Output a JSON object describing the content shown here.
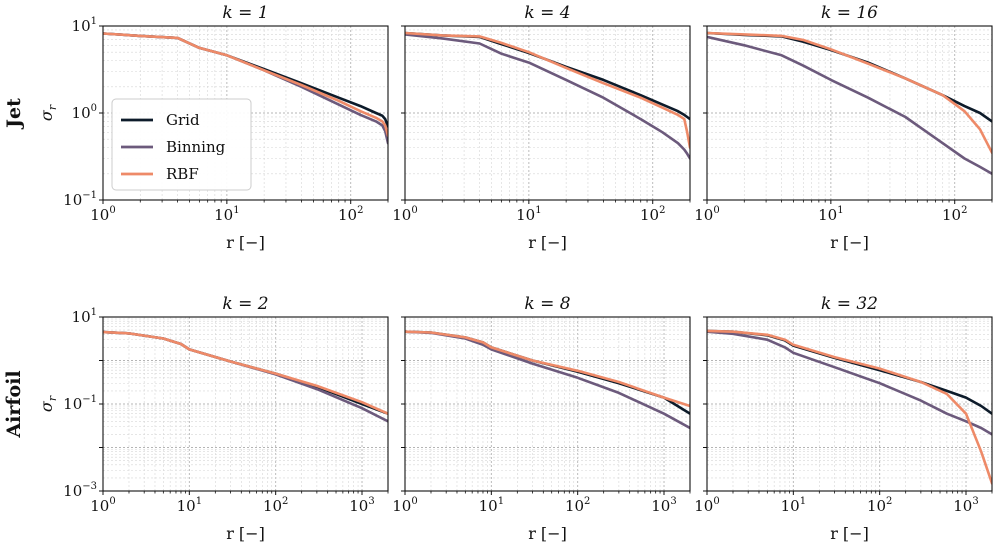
{
  "colors": {
    "Grid": "#0d1b2a",
    "Binning": "#6c5a7c",
    "RBF": "#ee8a68"
  },
  "rows": [
    {
      "label": "Jet",
      "ylabel_base": "σ",
      "ylabel_sub": "r"
    },
    {
      "label": "Airfoil",
      "ylabel_base": "σ",
      "ylabel_sub": "r"
    }
  ],
  "xlabel": "r [−]",
  "legend": {
    "location": "upper-left of first panel",
    "entries": [
      "Grid",
      "Binning",
      "RBF"
    ]
  },
  "chart_data": [
    {
      "type": "line",
      "title": "k = 1",
      "xscale": "log",
      "yscale": "log",
      "xlim": [
        1,
        200
      ],
      "ylim": [
        0.1,
        10
      ],
      "grid": true,
      "xticks": [
        "10^0",
        "10^1",
        "10^2"
      ],
      "yticks": [
        "10^-1",
        "10^0",
        "10^1"
      ],
      "x": [
        1,
        2,
        4,
        6,
        10,
        20,
        40,
        80,
        120,
        160,
        180,
        190,
        200
      ],
      "series": [
        {
          "name": "Grid",
          "values": [
            8.2,
            7.7,
            7.3,
            5.6,
            4.6,
            3.2,
            2.2,
            1.5,
            1.2,
            1.0,
            0.93,
            0.85,
            0.7
          ]
        },
        {
          "name": "Binning",
          "values": [
            8.2,
            7.7,
            7.3,
            5.6,
            4.6,
            3.1,
            2.0,
            1.25,
            0.95,
            0.8,
            0.72,
            0.62,
            0.45
          ]
        },
        {
          "name": "RBF",
          "values": [
            8.2,
            7.7,
            7.3,
            5.6,
            4.6,
            3.1,
            2.1,
            1.38,
            1.05,
            0.88,
            0.8,
            0.72,
            0.55
          ]
        }
      ]
    },
    {
      "type": "line",
      "title": "k = 4",
      "xscale": "log",
      "yscale": "log",
      "xlim": [
        1,
        200
      ],
      "ylim": [
        0.1,
        10
      ],
      "grid": true,
      "xticks": [
        "10^0",
        "10^1",
        "10^2"
      ],
      "yticks": [
        "10^-1",
        "10^0",
        "10^1"
      ],
      "x": [
        1,
        2,
        4,
        6,
        10,
        20,
        40,
        80,
        120,
        160,
        180,
        190,
        200
      ],
      "series": [
        {
          "name": "Grid",
          "values": [
            8.3,
            7.8,
            7.5,
            6.2,
            4.9,
            3.4,
            2.4,
            1.6,
            1.25,
            1.05,
            0.95,
            0.9,
            0.85
          ]
        },
        {
          "name": "Binning",
          "values": [
            8.0,
            7.2,
            6.3,
            4.8,
            3.8,
            2.4,
            1.5,
            0.85,
            0.6,
            0.45,
            0.38,
            0.34,
            0.3
          ]
        },
        {
          "name": "RBF",
          "values": [
            8.3,
            7.8,
            7.6,
            6.4,
            5.0,
            3.3,
            2.2,
            1.5,
            1.15,
            0.95,
            0.85,
            0.6,
            0.4
          ]
        }
      ]
    },
    {
      "type": "line",
      "title": "k = 16",
      "xscale": "log",
      "yscale": "log",
      "xlim": [
        1,
        200
      ],
      "ylim": [
        0.1,
        10
      ],
      "grid": true,
      "xticks": [
        "10^0",
        "10^1",
        "10^2"
      ],
      "yticks": [
        "10^-1",
        "10^0",
        "10^1"
      ],
      "x": [
        1,
        2,
        4,
        6,
        10,
        20,
        40,
        80,
        120,
        160,
        200
      ],
      "series": [
        {
          "name": "Grid",
          "values": [
            8.3,
            7.9,
            7.6,
            6.6,
            5.3,
            3.8,
            2.5,
            1.6,
            1.2,
            1.0,
            0.8
          ]
        },
        {
          "name": "Binning",
          "values": [
            7.5,
            6.0,
            4.6,
            3.5,
            2.4,
            1.5,
            0.9,
            0.45,
            0.3,
            0.24,
            0.2
          ]
        },
        {
          "name": "RBF",
          "values": [
            8.3,
            8.0,
            7.7,
            6.9,
            5.4,
            3.7,
            2.5,
            1.6,
            1.05,
            0.65,
            0.35
          ]
        }
      ]
    },
    {
      "type": "line",
      "title": "k = 2",
      "xscale": "log",
      "yscale": "log",
      "xlim": [
        1,
        2000
      ],
      "ylim": [
        0.001,
        10
      ],
      "grid": true,
      "xticks": [
        "10^0",
        "10^1",
        "10^2",
        "10^3"
      ],
      "yticks": [
        "10^-3",
        "10^-1",
        "10^1"
      ],
      "x": [
        1,
        2,
        5,
        8,
        10,
        30,
        100,
        300,
        1000,
        2000
      ],
      "series": [
        {
          "name": "Grid",
          "values": [
            4.5,
            4.2,
            3.2,
            2.4,
            1.8,
            0.95,
            0.5,
            0.25,
            0.1,
            0.06
          ]
        },
        {
          "name": "Binning",
          "values": [
            4.5,
            4.2,
            3.2,
            2.4,
            1.8,
            0.95,
            0.48,
            0.22,
            0.08,
            0.04
          ]
        },
        {
          "name": "RBF",
          "values": [
            4.5,
            4.2,
            3.2,
            2.4,
            1.8,
            0.95,
            0.5,
            0.26,
            0.11,
            0.06
          ]
        }
      ]
    },
    {
      "type": "line",
      "title": "k = 8",
      "xscale": "log",
      "yscale": "log",
      "xlim": [
        1,
        2000
      ],
      "ylim": [
        0.001,
        10
      ],
      "grid": true,
      "xticks": [
        "10^0",
        "10^1",
        "10^2",
        "10^3"
      ],
      "yticks": [
        "10^-3",
        "10^-1",
        "10^1"
      ],
      "x": [
        1,
        2,
        5,
        8,
        10,
        30,
        100,
        300,
        1000,
        2000
      ],
      "series": [
        {
          "name": "Grid",
          "values": [
            4.6,
            4.4,
            3.4,
            2.6,
            2.0,
            1.0,
            0.55,
            0.3,
            0.14,
            0.06
          ]
        },
        {
          "name": "Binning",
          "values": [
            4.6,
            4.3,
            3.2,
            2.3,
            1.8,
            0.85,
            0.4,
            0.18,
            0.06,
            0.028
          ]
        },
        {
          "name": "RBF",
          "values": [
            4.6,
            4.4,
            3.4,
            2.6,
            2.0,
            1.0,
            0.58,
            0.32,
            0.14,
            0.09
          ]
        }
      ]
    },
    {
      "type": "line",
      "title": "k = 32",
      "xscale": "log",
      "yscale": "log",
      "xlim": [
        1,
        2000
      ],
      "ylim": [
        0.001,
        10
      ],
      "grid": true,
      "xticks": [
        "10^0",
        "10^1",
        "10^2",
        "10^3"
      ],
      "yticks": [
        "10^-3",
        "10^-1",
        "10^1"
      ],
      "x": [
        1,
        2,
        5,
        8,
        10,
        30,
        100,
        300,
        600,
        1000,
        1500,
        2000
      ],
      "series": [
        {
          "name": "Grid",
          "values": [
            4.8,
            4.6,
            3.8,
            2.9,
            2.2,
            1.15,
            0.6,
            0.32,
            0.2,
            0.14,
            0.09,
            0.06
          ]
        },
        {
          "name": "Binning",
          "values": [
            4.6,
            4.1,
            3.0,
            2.0,
            1.5,
            0.7,
            0.3,
            0.12,
            0.06,
            0.04,
            0.028,
            0.02
          ]
        },
        {
          "name": "RBF",
          "values": [
            4.8,
            4.6,
            3.9,
            3.0,
            2.3,
            1.2,
            0.65,
            0.32,
            0.17,
            0.06,
            0.008,
            0.0015
          ]
        }
      ]
    }
  ]
}
